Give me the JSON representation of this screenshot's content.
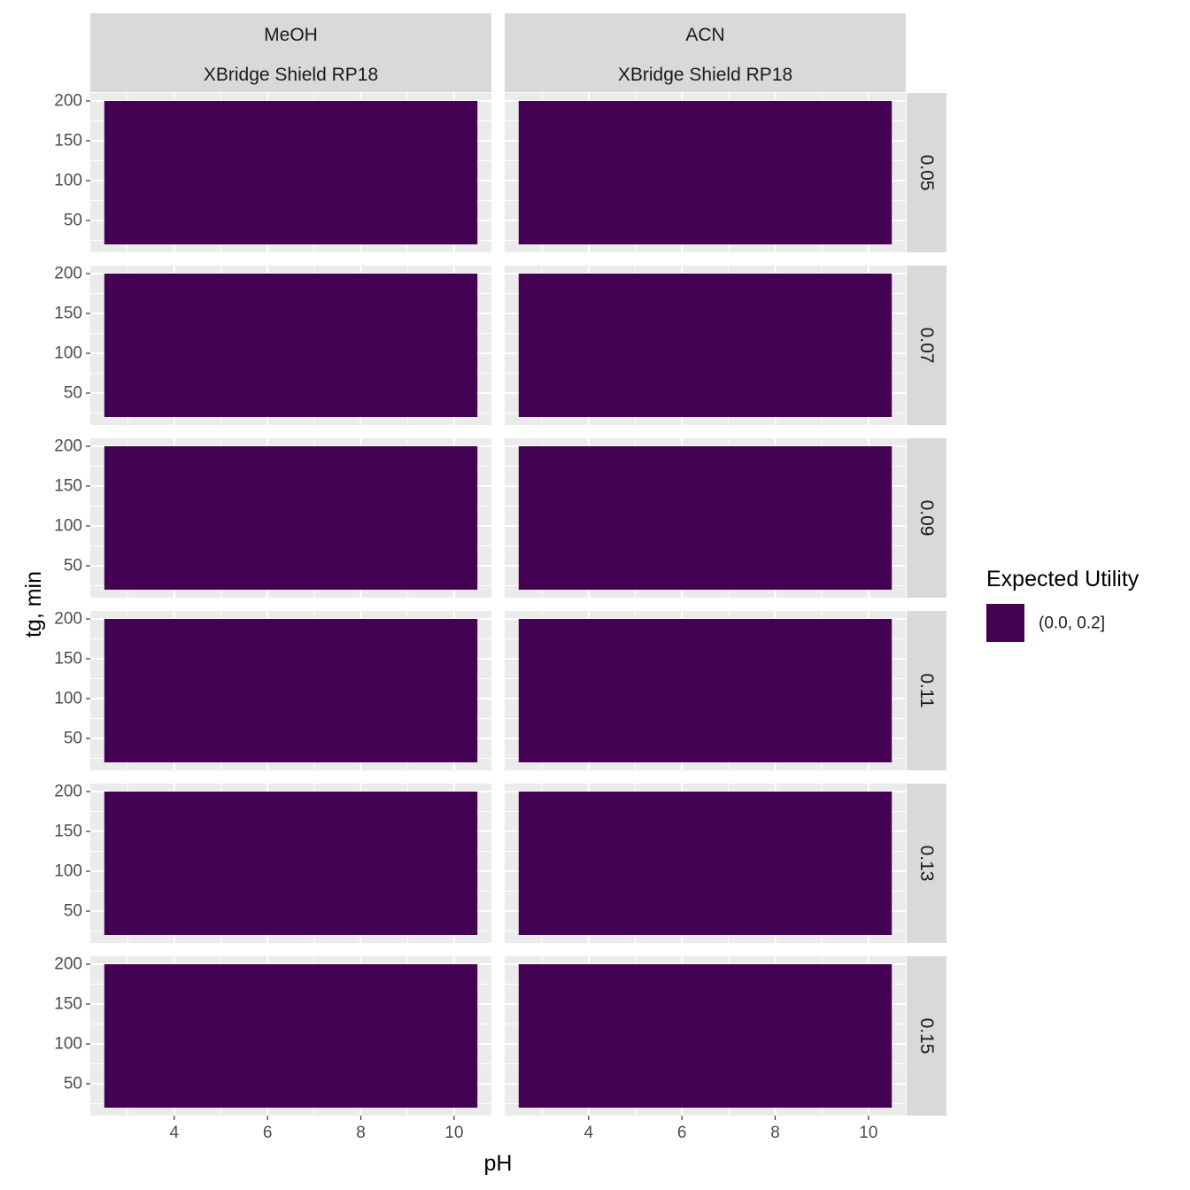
{
  "chart_data": {
    "type": "heatmap",
    "facet_cols": [
      {
        "top": "MeOH",
        "bottom": "XBridge Shield RP18"
      },
      {
        "top": "ACN",
        "bottom": "XBridge Shield RP18"
      }
    ],
    "facet_rows": [
      "0.05",
      "0.07",
      "0.09",
      "0.11",
      "0.13",
      "0.15"
    ],
    "xlabel": "pH",
    "ylabel": "tg, min",
    "xlim": [
      2.2,
      10.8
    ],
    "ylim": [
      10,
      210
    ],
    "x_ticks": [
      4,
      6,
      8,
      10
    ],
    "y_ticks": [
      50,
      100,
      150,
      200
    ],
    "tile": {
      "x_range": [
        2.5,
        10.5
      ],
      "y_range": [
        20,
        200
      ],
      "category": "(0.0, 0.2]"
    },
    "legend": {
      "title": "Expected Utility",
      "placement": "right",
      "entries": [
        {
          "label": "(0.0, 0.2]",
          "color": "#440154"
        }
      ]
    },
    "grid": true,
    "colors": {
      "panel_bg": "#EBEBEB",
      "strip_bg": "#D9D9D9",
      "grid_major": "#FFFFFF",
      "fill": "#440154"
    }
  }
}
